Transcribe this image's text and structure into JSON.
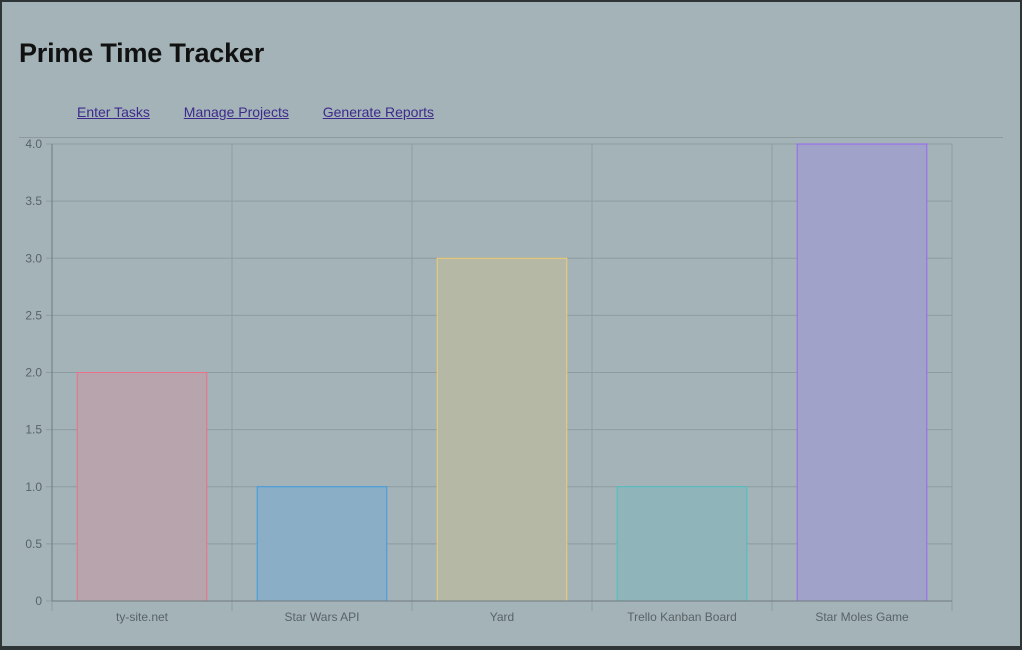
{
  "app": {
    "title": "Prime Time Tracker"
  },
  "nav": {
    "items": [
      {
        "label": "Enter Tasks"
      },
      {
        "label": "Manage Projects"
      },
      {
        "label": "Generate Reports"
      }
    ]
  },
  "chart_data": {
    "type": "bar",
    "categories": [
      "ty-site.net",
      "Star Wars API",
      "Yard",
      "Trello Kanban Board",
      "Star Moles Game"
    ],
    "values": [
      2,
      1,
      3,
      1,
      4
    ],
    "ylim": [
      0,
      4.0
    ],
    "yticks": [
      "0",
      "0.5",
      "1.0",
      "1.5",
      "2.0",
      "2.5",
      "3.0",
      "3.5",
      "4.0"
    ],
    "grid": true,
    "legend": "none",
    "colors": {
      "fills": [
        "#b7a4ad",
        "#8aaec6",
        "#b6b8a6",
        "#8fb5bb",
        "#a0a2c9"
      ],
      "strokes": [
        "#ef6f8b",
        "#3d9be0",
        "#f2cc72",
        "#4cc0c0",
        "#9866f2"
      ],
      "grid": "#8e9ca0",
      "axis": "#6f7b7f"
    }
  }
}
